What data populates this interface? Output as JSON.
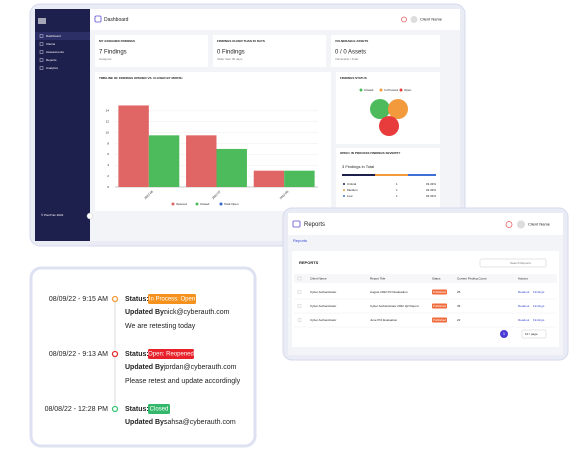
{
  "dashboard": {
    "sidebar": {
      "items": [
        "Dashboard",
        "Clients",
        "Assessments",
        "Reports",
        "Analytics"
      ],
      "footer": "© PlexTrac 2022"
    },
    "header": {
      "title": "Dashboard",
      "user": "Client Name"
    },
    "cards": [
      {
        "label": "MY ASSIGNED FINDINGS",
        "value": "7 Findings",
        "caption": "Assigned"
      },
      {
        "label": "FINDINGS OLDER THAN 30 DAYS",
        "value": "0 Findings",
        "caption": "Older than 30 days"
      },
      {
        "label": "VULNERABLE ASSETS",
        "value": "0 / 0 Assets",
        "caption": "Vulnerable / Total"
      }
    ],
    "chart_data": {
      "type": "bar",
      "title": "TIMELINE OF FINDINGS OPENED VS. CLOSED BY MONTH",
      "categories": [
        "2022-06",
        "2022-07",
        "2022-08"
      ],
      "series": [
        {
          "name": "Opened",
          "color": "#e06666",
          "values": [
            15,
            9.5,
            3
          ]
        },
        {
          "name": "Closed",
          "color": "#4dbb5c",
          "values": [
            9.5,
            7,
            3
          ]
        },
        {
          "name": "Total Open",
          "color": "#2f66c9",
          "values": [
            null,
            null,
            null
          ]
        }
      ],
      "ylim": [
        0,
        16
      ],
      "yticks": [
        0,
        2,
        4,
        6,
        8,
        10,
        12,
        14
      ],
      "grid": true
    },
    "status": {
      "title": "FINDINGS STATUS",
      "legend": [
        "Closed",
        "In Process",
        "Open"
      ]
    },
    "severity": {
      "title": "OPEN / IN PROCESS FINDINGS SEVERITY",
      "total": "3 Findings in Total",
      "rows": [
        [
          "Critical",
          1,
          "33.33%"
        ],
        [
          "Medium",
          1,
          "33.33%"
        ],
        [
          "Low",
          1,
          "33.33%"
        ]
      ]
    }
  },
  "reports": {
    "header": {
      "title": "Reports",
      "user": "Client Name"
    },
    "breadcrumb": "Reports",
    "card_title": "REPORTS",
    "search": "Search Reports",
    "table": {
      "columns": [
        "Client Name",
        "Report Title",
        "Status",
        "Current Finding Count",
        "Actions"
      ],
      "rows": [
        [
          "Cyber Authenticator",
          "August 2022 PCI Evaluation",
          "Published",
          25,
          "Readout",
          "Findings"
        ],
        [
          "Cyber Authenticator",
          "Cyber Authenticator 2022 Q2 Report",
          "Published",
          35,
          "Readout",
          "Findings"
        ],
        [
          "Cyber Authenticator",
          "June PCI Evaluation",
          "Published",
          22,
          "Readout",
          "Findings"
        ]
      ]
    },
    "page": 1,
    "page_size": "10 / page"
  },
  "timeline": {
    "status_label": "Status:",
    "updated_label": "Updated By:",
    "entries": [
      {
        "date": "08/09/22 - 9:15 AM",
        "status": "In Process: Open",
        "updated_by": "nick@cyberauth.com",
        "note": "We are retesting today"
      },
      {
        "date": "08/09/22 - 9:13 AM",
        "status": "Open: Reopened",
        "updated_by": "jordan@cyberauth.com",
        "note": "Please retest and update accordingly"
      },
      {
        "date": "08/08/22 - 12:28 PM",
        "status": "Closed",
        "updated_by": "sahsa@cyberauth.com"
      }
    ]
  }
}
